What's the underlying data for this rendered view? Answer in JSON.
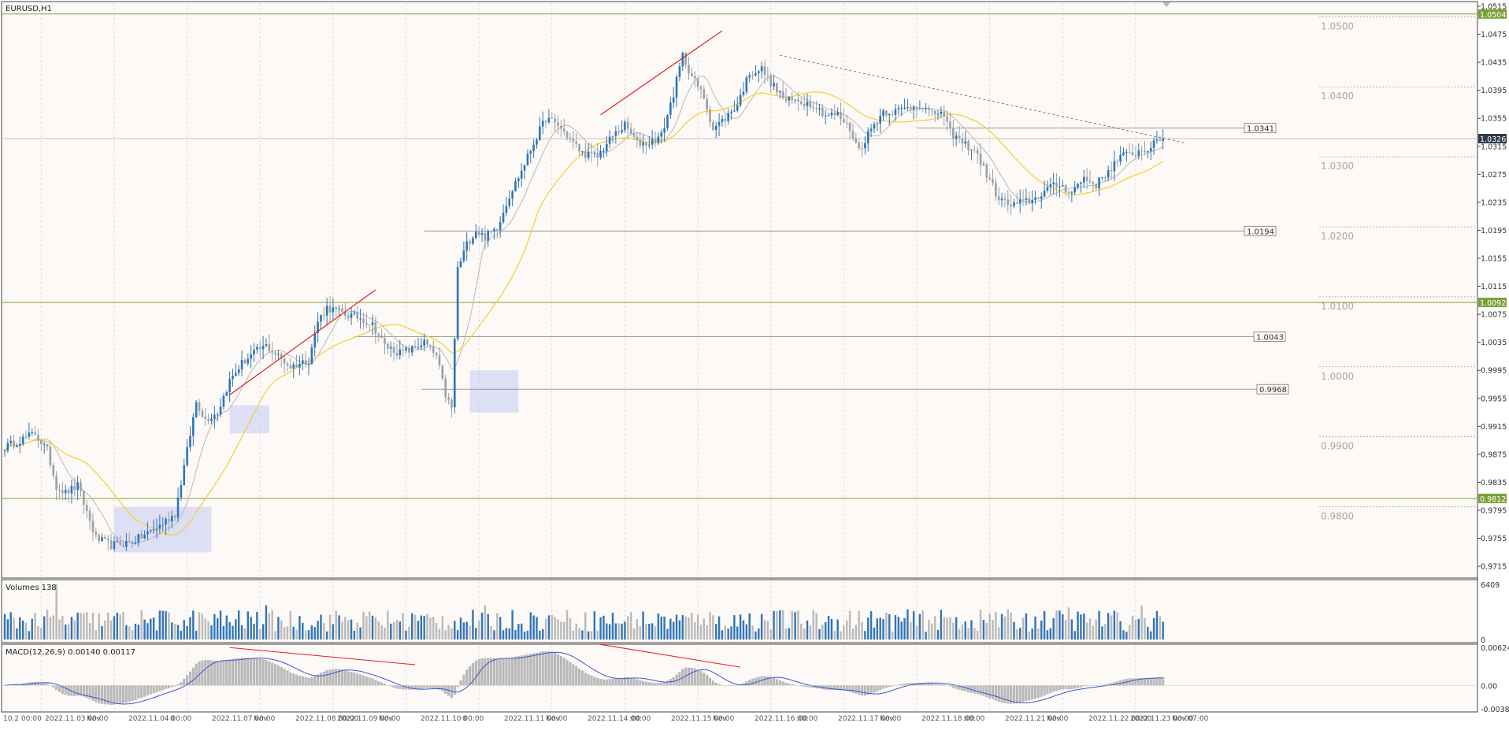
{
  "window": {
    "symbol_title": "EURUSD,H1",
    "volumes_label": "Volumes 138",
    "macd_label": "MACD(12,26,9) 0.00140 0.00117"
  },
  "colors": {
    "background": "#fdf9f6",
    "bull_candle": "#2f74b8",
    "bear_candle": "#9aa0a6",
    "ma_slow": "#f5cf2f",
    "ma_fast": "#b8b8b8",
    "macd_line": "#3a56d4",
    "macd_hist": "#b9b9b9",
    "trend_red": "#e02020",
    "hline_green": "#7aa23a",
    "price_tag": "#2e3a48",
    "box_fill": "#c8cdf3"
  },
  "chart_data": [
    {
      "type": "candlestick",
      "panel": "price",
      "symbol": "EURUSD",
      "timeframe": "H1",
      "y_range": [
        0.9705,
        1.0515
      ],
      "y_ticks": [
        "1.0515",
        "1.0475",
        "1.0435",
        "1.0395",
        "1.0355",
        "1.0315",
        "1.0275",
        "1.0235",
        "1.0195",
        "1.0155",
        "1.0115",
        "1.0075",
        "1.0035",
        "0.9995",
        "0.9955",
        "0.9915",
        "0.9875",
        "0.9835",
        "0.9795",
        "0.9755",
        "0.9715"
      ],
      "current_price": "1.0326",
      "anchors": [
        [
          0,
          0.9885
        ],
        [
          10,
          0.9905
        ],
        [
          14,
          0.988
        ],
        [
          17,
          0.983
        ],
        [
          20,
          0.982
        ],
        [
          24,
          0.983
        ],
        [
          30,
          0.9755
        ],
        [
          35,
          0.9745
        ],
        [
          42,
          0.975
        ],
        [
          50,
          0.977
        ],
        [
          56,
          0.979
        ],
        [
          60,
          0.988
        ],
        [
          63,
          0.995
        ],
        [
          66,
          0.9925
        ],
        [
          70,
          0.9935
        ],
        [
          74,
          0.998
        ],
        [
          78,
          1.0005
        ],
        [
          82,
          1.002
        ],
        [
          86,
          1.003
        ],
        [
          90,
          1.0015
        ],
        [
          94,
          1.0
        ],
        [
          100,
          1.001
        ],
        [
          103,
          1.0065
        ],
        [
          106,
          1.0085
        ],
        [
          112,
          1.0075
        ],
        [
          117,
          1.007
        ],
        [
          121,
          1.006
        ],
        [
          125,
          1.003
        ],
        [
          130,
          1.002
        ],
        [
          134,
          1.0025
        ],
        [
          138,
          1.0035
        ],
        [
          142,
          1.0015
        ],
        [
          145,
          0.996
        ],
        [
          147,
          0.994
        ],
        [
          149,
          1.014
        ],
        [
          152,
          1.0175
        ],
        [
          155,
          1.0195
        ],
        [
          158,
          1.0185
        ],
        [
          162,
          1.02
        ],
        [
          166,
          1.0245
        ],
        [
          170,
          1.028
        ],
        [
          174,
          1.032
        ],
        [
          178,
          1.0355
        ],
        [
          182,
          1.0345
        ],
        [
          186,
          1.0325
        ],
        [
          190,
          1.0305
        ],
        [
          195,
          1.03
        ],
        [
          200,
          1.033
        ],
        [
          204,
          1.0345
        ],
        [
          208,
          1.032
        ],
        [
          212,
          1.032
        ],
        [
          216,
          1.033
        ],
        [
          220,
          1.039
        ],
        [
          223,
          1.0445
        ],
        [
          226,
          1.0415
        ],
        [
          230,
          1.0385
        ],
        [
          233,
          1.034
        ],
        [
          237,
          1.0355
        ],
        [
          241,
          1.0375
        ],
        [
          245,
          1.042
        ],
        [
          249,
          1.0425
        ],
        [
          253,
          1.04
        ],
        [
          257,
          1.038
        ],
        [
          261,
          1.038
        ],
        [
          266,
          1.0375
        ],
        [
          270,
          1.036
        ],
        [
          274,
          1.036
        ],
        [
          278,
          1.034
        ],
        [
          281,
          1.031
        ],
        [
          285,
          1.034
        ],
        [
          289,
          1.0365
        ],
        [
          293,
          1.0365
        ],
        [
          297,
          1.037
        ],
        [
          301,
          1.0375
        ],
        [
          305,
          1.036
        ],
        [
          308,
          1.0365
        ],
        [
          311,
          1.0335
        ],
        [
          315,
          1.032
        ],
        [
          319,
          1.031
        ],
        [
          323,
          1.0275
        ],
        [
          327,
          1.024
        ],
        [
          331,
          1.023
        ],
        [
          335,
          1.0235
        ],
        [
          339,
          1.024
        ],
        [
          343,
          1.0255
        ],
        [
          347,
          1.026
        ],
        [
          351,
          1.025
        ],
        [
          355,
          1.027
        ],
        [
          359,
          1.026
        ],
        [
          363,
          1.028
        ],
        [
          367,
          1.03
        ],
        [
          371,
          1.0305
        ],
        [
          375,
          1.031
        ],
        [
          379,
          1.032
        ],
        [
          381,
          1.0326
        ]
      ],
      "horizontal_levels": [
        {
          "price": 1.0504,
          "label": "1.0504",
          "style": "solid-green"
        },
        {
          "price": 1.0092,
          "label": "1.0092",
          "style": "solid-green"
        },
        {
          "price": 0.9812,
          "label": "0.9812",
          "style": "solid-green"
        },
        {
          "price": 1.0341,
          "label": "1.0341",
          "style": "grey-tagged"
        },
        {
          "price": 1.0194,
          "label": "1.0194",
          "style": "grey-tagged"
        },
        {
          "price": 1.0043,
          "label": "1.0043",
          "style": "grey-tagged"
        },
        {
          "price": 0.9968,
          "label": "0.9968",
          "style": "grey-tagged"
        },
        {
          "price": 1.0326,
          "label": "1.0326",
          "style": "current-price"
        }
      ],
      "round_levels": [
        {
          "price": 1.05,
          "label": "1.0500"
        },
        {
          "price": 1.04,
          "label": "1.0400"
        },
        {
          "price": 1.03,
          "label": "1.0300"
        },
        {
          "price": 1.02,
          "label": "1.0200"
        },
        {
          "price": 1.01,
          "label": "1.0100"
        },
        {
          "price": 1.0,
          "label": "1.0000"
        },
        {
          "price": 0.99,
          "label": "0.9900"
        },
        {
          "price": 0.98,
          "label": "0.9800"
        }
      ],
      "red_trendlines": [
        {
          "from": [
            74,
            0.996
          ],
          "to": [
            122,
            1.011
          ]
        },
        {
          "from": [
            196,
            1.036
          ],
          "to": [
            236,
            1.048
          ]
        }
      ],
      "dotted_trendline": {
        "from": [
          255,
          1.0445
        ],
        "to": [
          388,
          1.032
        ]
      },
      "boxes": [
        {
          "x": [
            36,
            68
          ],
          "y": [
            0.9735,
            0.98
          ]
        },
        {
          "x": [
            74,
            87
          ],
          "y": [
            0.9905,
            0.9945
          ]
        },
        {
          "x": [
            153,
            169
          ],
          "y": [
            0.9935,
            0.9995
          ]
        }
      ]
    },
    {
      "type": "bar",
      "panel": "volumes",
      "y_range": [
        0,
        6409
      ],
      "y_ticks": [
        "6409",
        "0"
      ]
    },
    {
      "type": "histogram+line",
      "panel": "MACD",
      "params": "12,26,9",
      "y_range": [
        -0.00382,
        0.00624
      ],
      "y_ticks": [
        "0.00624",
        "0.00",
        "-0.00382"
      ],
      "red_trendlines": [
        {
          "from": [
            74,
            0.0062
          ],
          "to": [
            135,
            0.0034
          ]
        },
        {
          "from": [
            195,
            0.0068
          ],
          "to": [
            242,
            0.003
          ]
        }
      ]
    }
  ],
  "time_axis": {
    "labels": [
      "10.2 00:00",
      "2022.11.03 00:00",
      "Nov",
      "2022.11.04 00:00",
      "0",
      "2022.11.07 00:00",
      "Nov",
      "2022.11.08 00:00",
      "2022.11.09 00:00",
      "Nov",
      "2022.11.10 00:00",
      "0",
      "2022.11.11 00:00",
      "Nov",
      "2022.11.14 00:00",
      ":00",
      "2022.11.15 00:00",
      "Nov",
      "2022.11.16 00:00",
      ":00",
      "2022.11.17 00:00",
      "Nov",
      "2022.11.18 00:00",
      ":00",
      "2022.11.21 00:00",
      "Nov",
      "2022.11.22 00:00",
      "2022.11.23 00:00",
      "Nov 07:00"
    ]
  }
}
